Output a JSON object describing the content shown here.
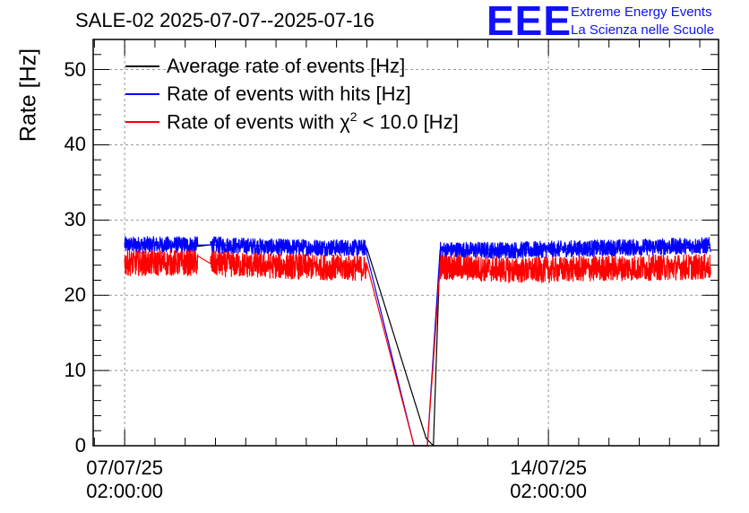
{
  "header": {
    "title": "SALE-02 2025-07-07--2025-07-16",
    "logo_text": "EEE",
    "brand_line1": "Extreme Energy Events",
    "brand_line2": "La Scienza nelle Scuole"
  },
  "colors": {
    "average": "#000000",
    "hits": "#0000ff",
    "chi2": "#ff0000",
    "grid": "#9a9a9a",
    "brand": "#1010ff"
  },
  "chart_data": {
    "type": "line",
    "title": "SALE-02 2025-07-07--2025-07-16",
    "xlabel": "",
    "ylabel": "Rate [Hz]",
    "ylim": [
      0,
      54
    ],
    "xlim_days": [
      -0.52,
      9.81
    ],
    "x_unit": "days since 07/07/25 02:00:00",
    "grid": true,
    "legend_position": "top-left",
    "y_ticks": [
      0,
      10,
      20,
      30,
      40,
      50
    ],
    "y_tick_labels": [
      "0",
      "10",
      "20",
      "30",
      "40",
      "50"
    ],
    "x_ticks": [
      {
        "day": 0,
        "line1": "07/07/25",
        "line2": "02:00:00"
      },
      {
        "day": 7,
        "line1": "14/07/25",
        "line2": "02:00:00"
      }
    ],
    "series": [
      {
        "name": "Average rate of events [Hz]",
        "color": "#000000",
        "points": [
          [
            0.0,
            26.7
          ],
          [
            1.21,
            26.5
          ],
          [
            1.42,
            26.7
          ],
          [
            4.0,
            26.3
          ],
          [
            4.98,
            1.0
          ],
          [
            5.1,
            0.0
          ],
          [
            5.21,
            26.0
          ],
          [
            9.68,
            26.3
          ]
        ]
      },
      {
        "name": "Rate of events with hits [Hz]",
        "color": "#0000ff",
        "noise": 1.1,
        "points": [
          [
            0.0,
            26.7
          ],
          [
            1.21,
            26.7
          ],
          [
            1.42,
            26.7
          ],
          [
            2.5,
            26.4
          ],
          [
            4.0,
            26.3
          ],
          [
            4.78,
            0.0
          ],
          [
            5.0,
            0.0
          ],
          [
            5.21,
            26.0
          ],
          [
            6.5,
            26.0
          ],
          [
            8.0,
            26.3
          ],
          [
            9.68,
            26.6
          ]
        ]
      },
      {
        "name": "Rate of events with χ² < 10.0 [Hz]",
        "legend_prefix": "Rate of events with χ",
        "legend_sup": "2",
        "legend_suffix": " < 10.0 [Hz]",
        "color": "#ff0000",
        "noise": 1.7,
        "points": [
          [
            0.0,
            24.3
          ],
          [
            1.21,
            24.3
          ],
          [
            1.42,
            24.2
          ],
          [
            2.5,
            23.9
          ],
          [
            4.0,
            23.6
          ],
          [
            4.78,
            0.0
          ],
          [
            5.0,
            0.0
          ],
          [
            5.21,
            23.8
          ],
          [
            6.5,
            23.3
          ],
          [
            8.0,
            23.6
          ],
          [
            9.68,
            23.8
          ]
        ]
      }
    ]
  }
}
